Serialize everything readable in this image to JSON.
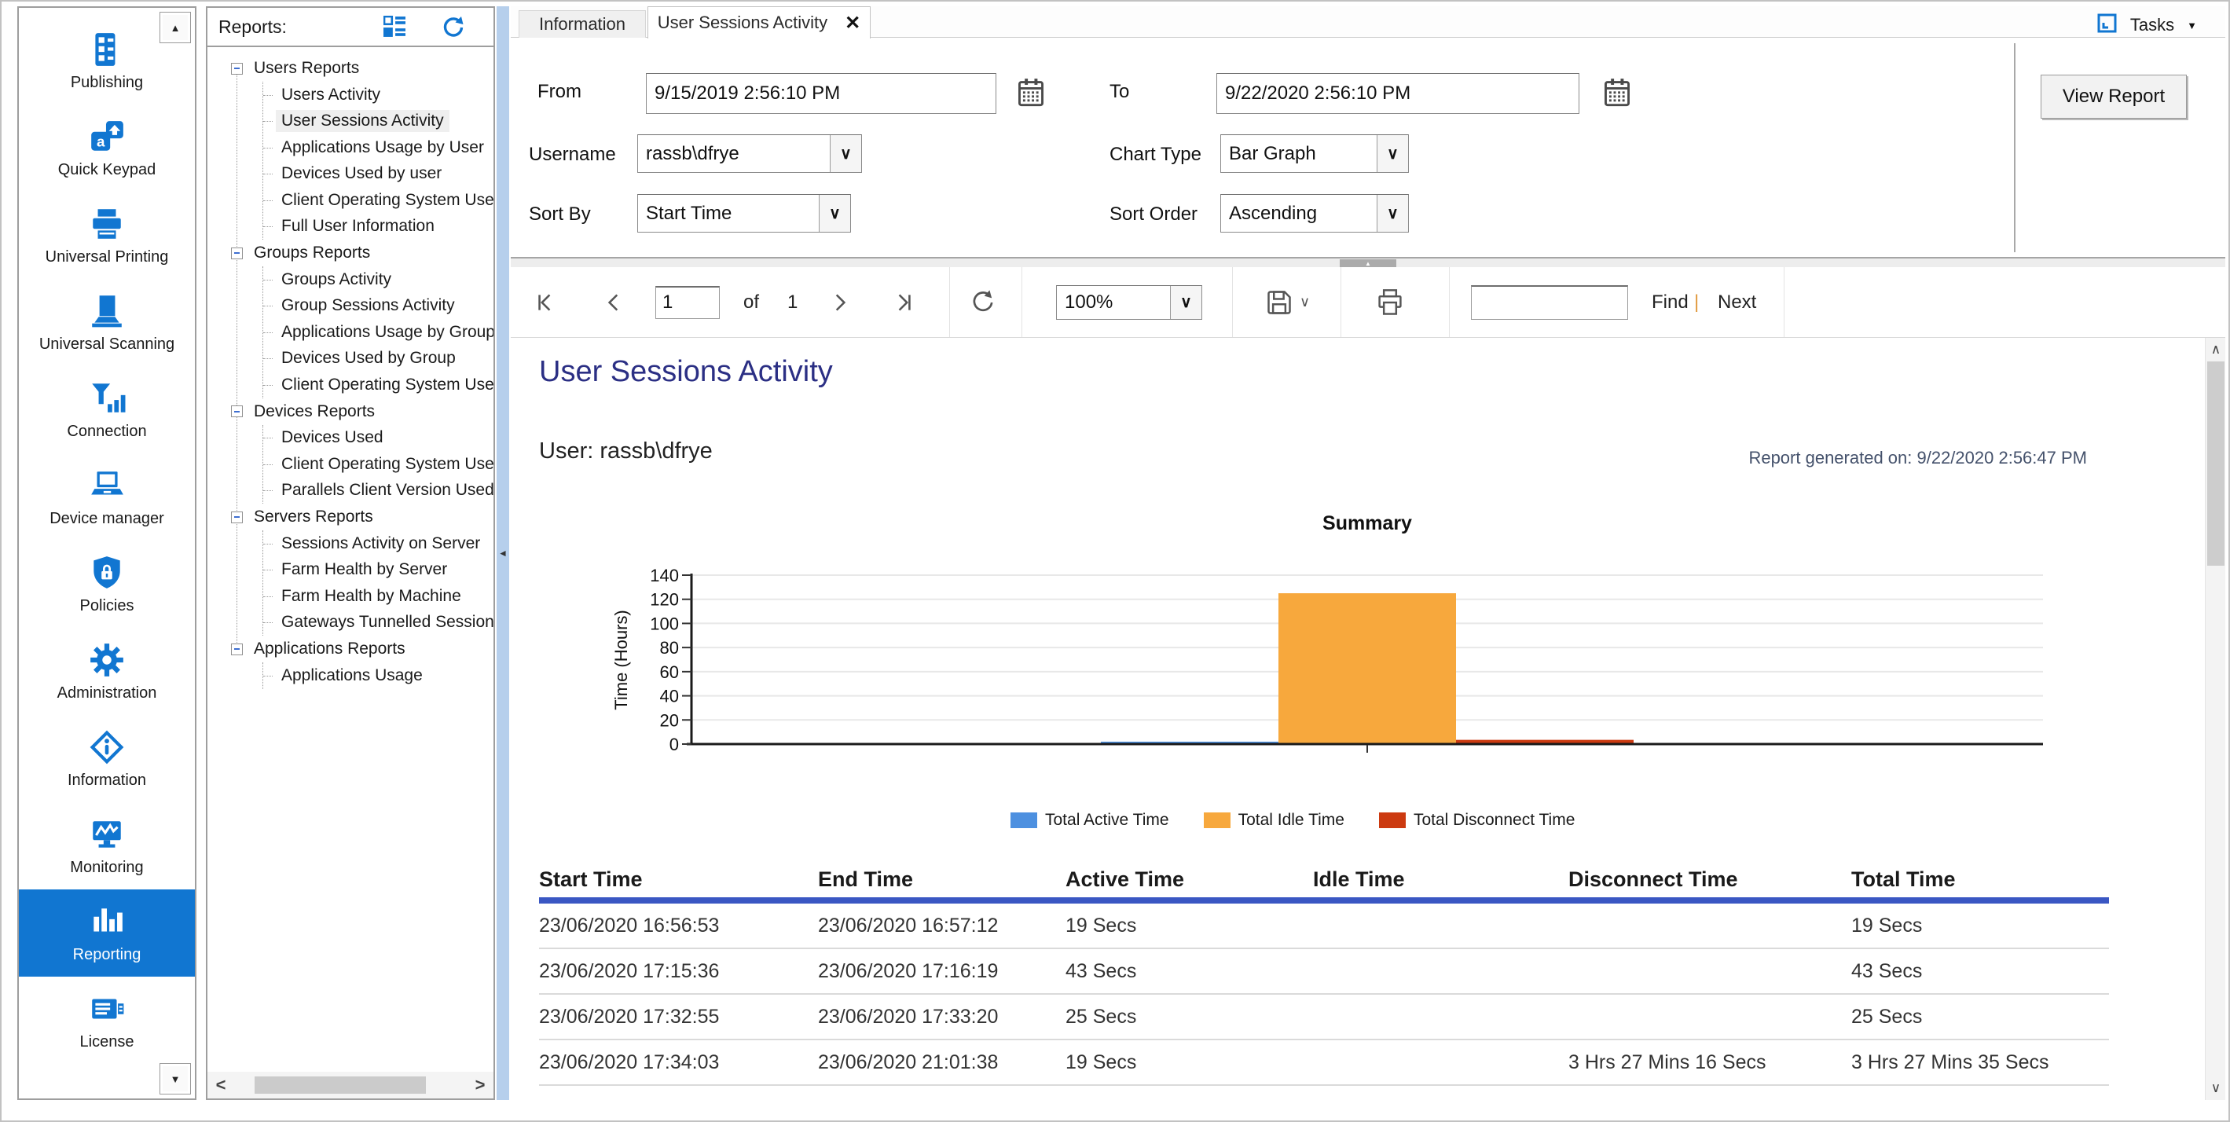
{
  "nav_sidebar": {
    "items": [
      {
        "label": "Publishing",
        "icon": "publishing-icon",
        "selected": false
      },
      {
        "label": "Quick Keypad",
        "icon": "quick-keypad-icon",
        "selected": false
      },
      {
        "label": "Universal Printing",
        "icon": "universal-printing-icon",
        "selected": false
      },
      {
        "label": "Universal Scanning",
        "icon": "universal-scanning-icon",
        "selected": false
      },
      {
        "label": "Connection",
        "icon": "connection-icon",
        "selected": false
      },
      {
        "label": "Device manager",
        "icon": "device-manager-icon",
        "selected": false
      },
      {
        "label": "Policies",
        "icon": "policies-icon",
        "selected": false
      },
      {
        "label": "Administration",
        "icon": "administration-icon",
        "selected": false
      },
      {
        "label": "Information",
        "icon": "information-icon",
        "selected": false
      },
      {
        "label": "Monitoring",
        "icon": "monitoring-icon",
        "selected": false
      },
      {
        "label": "Reporting",
        "icon": "reporting-icon",
        "selected": true
      },
      {
        "label": "License",
        "icon": "license-icon",
        "selected": false
      }
    ]
  },
  "reports_panel": {
    "title": "Reports:",
    "tree": [
      {
        "label": "Users Reports",
        "children": [
          {
            "label": "Users Activity"
          },
          {
            "label": "User Sessions Activity",
            "selected": true
          },
          {
            "label": "Applications Usage by User"
          },
          {
            "label": "Devices Used by user"
          },
          {
            "label": "Client Operating System Used"
          },
          {
            "label": "Full User Information"
          }
        ]
      },
      {
        "label": "Groups Reports",
        "children": [
          {
            "label": "Groups Activity"
          },
          {
            "label": "Group Sessions Activity"
          },
          {
            "label": "Applications Usage by Group"
          },
          {
            "label": "Devices Used by Group"
          },
          {
            "label": "Client Operating System Used"
          }
        ]
      },
      {
        "label": "Devices Reports",
        "children": [
          {
            "label": "Devices Used"
          },
          {
            "label": "Client Operating System Used"
          },
          {
            "label": "Parallels Client Version Used"
          }
        ]
      },
      {
        "label": "Servers Reports",
        "children": [
          {
            "label": "Sessions Activity on Server"
          },
          {
            "label": "Farm Health by Server"
          },
          {
            "label": "Farm Health by Machine"
          },
          {
            "label": "Gateways Tunnelled Sessions"
          }
        ]
      },
      {
        "label": "Applications Reports",
        "children": [
          {
            "label": "Applications Usage"
          }
        ]
      }
    ]
  },
  "tabs": [
    {
      "label": "Information",
      "active": false
    },
    {
      "label": "User Sessions Activity",
      "active": true,
      "close_glyph": "✕"
    }
  ],
  "tasks_menu": {
    "label": "Tasks"
  },
  "filters": {
    "from_label": "From",
    "from_value": "9/15/2019 2:56:10 PM",
    "to_label": "To",
    "to_value": "9/22/2020 2:56:10 PM",
    "username_label": "Username",
    "username_value": "rassb\\dfrye",
    "chart_type_label": "Chart Type",
    "chart_type_value": "Bar Graph",
    "sort_by_label": "Sort By",
    "sort_by_value": "Start Time",
    "sort_order_label": "Sort Order",
    "sort_order_value": "Ascending",
    "view_report_label": "View Report"
  },
  "viewer_toolbar": {
    "page_value": "1",
    "of_label": "of",
    "page_count": "1",
    "zoom_value": "100%",
    "find_label": "Find",
    "divider": "|",
    "next_label": "Next"
  },
  "report": {
    "title": "User Sessions Activity",
    "user_line": "User: rassb\\dfrye",
    "generated_line": "Report generated on: 9/22/2020 2:56:47 PM",
    "table": {
      "headers": [
        "Start Time",
        "End Time",
        "Active Time",
        "Idle Time",
        "Disconnect Time",
        "Total Time"
      ],
      "rows": [
        [
          "23/06/2020 16:56:53",
          "23/06/2020 16:57:12",
          "19 Secs",
          "",
          "",
          "19 Secs"
        ],
        [
          "23/06/2020 17:15:36",
          "23/06/2020 17:16:19",
          "43 Secs",
          "",
          "",
          "43 Secs"
        ],
        [
          "23/06/2020 17:32:55",
          "23/06/2020 17:33:20",
          "25 Secs",
          "",
          "",
          "25 Secs"
        ],
        [
          "23/06/2020 17:34:03",
          "23/06/2020 21:01:38",
          "19 Secs",
          "",
          "3 Hrs 27 Mins 16 Secs",
          "3 Hrs 27 Mins 35 Secs"
        ]
      ]
    }
  },
  "chart_data": {
    "type": "bar",
    "title": "Summary",
    "xlabel": "",
    "ylabel": "Time (Hours)",
    "ylim": [
      0,
      140
    ],
    "ytick_interval": 20,
    "grid": true,
    "legend_position": "bottom",
    "categories": [
      ""
    ],
    "series": [
      {
        "name": "Total Active Time",
        "color": "#4d90e0",
        "values": [
          2
        ]
      },
      {
        "name": "Total Idle Time",
        "color": "#f7a83d",
        "values": [
          125
        ]
      },
      {
        "name": "Total Disconnect Time",
        "color": "#cc3a10",
        "values": [
          3.5
        ]
      }
    ]
  },
  "colors": {
    "accent_blue": "#1176d1",
    "title_navy": "#2b2f84",
    "table_rule_blue": "#3a57c3"
  }
}
